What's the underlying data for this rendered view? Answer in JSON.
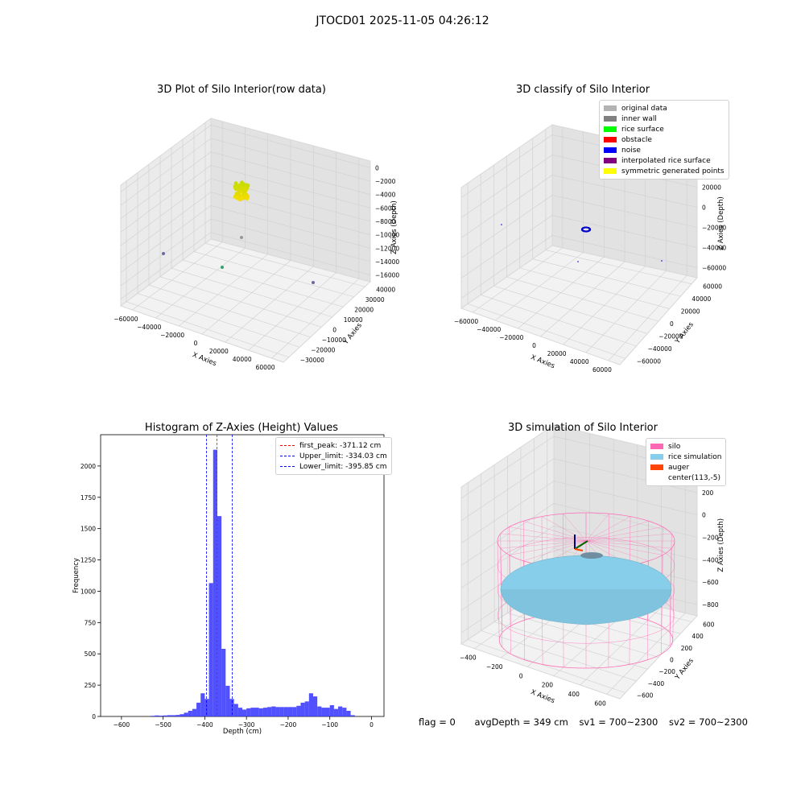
{
  "suptitle": "JTOCD01 2025-11-05 04:26:12",
  "chart_data": [
    {
      "type": "scatter",
      "title": "3D Plot of Silo Interior(row data)",
      "xlabel": "X Axies",
      "ylabel": "Y Axies",
      "zlabel": "Z Axies (Depth)",
      "x_ticks": [
        "−60000",
        "−40000",
        "−20000",
        "0",
        "20000",
        "40000",
        "60000"
      ],
      "y_ticks": [
        "−30000",
        "−20000",
        "−10000",
        "0",
        "10000",
        "20000",
        "30000",
        "40000"
      ],
      "z_ticks": [
        "0",
        "−2000",
        "−4000",
        "−6000",
        "−8000",
        "−10000",
        "−12000",
        "−14000",
        "−16000"
      ]
    },
    {
      "type": "scatter",
      "title": "3D classify of Silo Interior",
      "xlabel": "X Axies",
      "ylabel": "Y Axies",
      "zlabel": "Z Axies (Depth)",
      "x_ticks": [
        "−60000",
        "−40000",
        "−20000",
        "0",
        "20000",
        "40000",
        "60000"
      ],
      "y_ticks": [
        "−60000",
        "−40000",
        "−20000",
        "0",
        "20000",
        "40000",
        "60000"
      ],
      "z_ticks": [
        "40000",
        "20000",
        "0",
        "−20000",
        "−40000",
        "−60000"
      ],
      "legend": [
        {
          "label": "original data",
          "color": "#b3b3b3"
        },
        {
          "label": "inner wall",
          "color": "#808080"
        },
        {
          "label": "rice surface",
          "color": "#00ff00"
        },
        {
          "label": "obstacle",
          "color": "#ff0000"
        },
        {
          "label": "noise",
          "color": "#0000ff"
        },
        {
          "label": "interpolated rice surface",
          "color": "#800080"
        },
        {
          "label": "symmetric generated points",
          "color": "#ffff00"
        }
      ]
    },
    {
      "type": "bar",
      "title": "Histogram of Z-Axies (Height) Values",
      "xlabel": "Depth (cm)",
      "ylabel": "Frequency",
      "xlim": [
        -650,
        30
      ],
      "ylim": [
        0,
        2250
      ],
      "x_ticks": [
        -600,
        -500,
        -400,
        -300,
        -200,
        -100,
        0
      ],
      "x_tick_labels": [
        "−600",
        "−500",
        "−400",
        "−300",
        "−200",
        "−100",
        "0"
      ],
      "y_ticks": [
        0,
        250,
        500,
        750,
        1000,
        1250,
        1500,
        1750,
        2000
      ],
      "y_tick_labels": [
        "0",
        "250",
        "500",
        "750",
        "1000",
        "1250",
        "1500",
        "1750",
        "2000"
      ],
      "bin_width": 10,
      "bins": [
        {
          "x0": -530,
          "v": 5
        },
        {
          "x0": -520,
          "v": 8
        },
        {
          "x0": -510,
          "v": 6
        },
        {
          "x0": -500,
          "v": 8
        },
        {
          "x0": -490,
          "v": 10
        },
        {
          "x0": -480,
          "v": 10
        },
        {
          "x0": -470,
          "v": 12
        },
        {
          "x0": -460,
          "v": 18
        },
        {
          "x0": -450,
          "v": 30
        },
        {
          "x0": -440,
          "v": 45
        },
        {
          "x0": -430,
          "v": 60
        },
        {
          "x0": -420,
          "v": 110
        },
        {
          "x0": -410,
          "v": 185
        },
        {
          "x0": -400,
          "v": 140
        },
        {
          "x0": -390,
          "v": 1065
        },
        {
          "x0": -380,
          "v": 2130
        },
        {
          "x0": -370,
          "v": 1600
        },
        {
          "x0": -360,
          "v": 540
        },
        {
          "x0": -350,
          "v": 245
        },
        {
          "x0": -340,
          "v": 140
        },
        {
          "x0": -330,
          "v": 100
        },
        {
          "x0": -320,
          "v": 70
        },
        {
          "x0": -310,
          "v": 55
        },
        {
          "x0": -300,
          "v": 65
        },
        {
          "x0": -290,
          "v": 70
        },
        {
          "x0": -280,
          "v": 70
        },
        {
          "x0": -270,
          "v": 65
        },
        {
          "x0": -260,
          "v": 70
        },
        {
          "x0": -250,
          "v": 75
        },
        {
          "x0": -240,
          "v": 80
        },
        {
          "x0": -230,
          "v": 75
        },
        {
          "x0": -220,
          "v": 75
        },
        {
          "x0": -210,
          "v": 75
        },
        {
          "x0": -200,
          "v": 75
        },
        {
          "x0": -190,
          "v": 75
        },
        {
          "x0": -180,
          "v": 85
        },
        {
          "x0": -170,
          "v": 110
        },
        {
          "x0": -160,
          "v": 120
        },
        {
          "x0": -150,
          "v": 185
        },
        {
          "x0": -140,
          "v": 160
        },
        {
          "x0": -130,
          "v": 80
        },
        {
          "x0": -120,
          "v": 70
        },
        {
          "x0": -110,
          "v": 70
        },
        {
          "x0": -100,
          "v": 90
        },
        {
          "x0": -90,
          "v": 60
        },
        {
          "x0": -80,
          "v": 80
        },
        {
          "x0": -70,
          "v": 70
        },
        {
          "x0": -60,
          "v": 45
        },
        {
          "x0": -50,
          "v": 10
        }
      ],
      "vlines": [
        {
          "label": "first_peak: -371.12 cm",
          "x": -371.12,
          "color": "#ff0000"
        },
        {
          "label": "Upper_limit: -334.03 cm",
          "x": -334.03,
          "color": "#0000ff"
        },
        {
          "label": "Lower_limit: -395.85 cm",
          "x": -395.85,
          "color": "#0000ff"
        }
      ]
    },
    {
      "type": "scatter",
      "title": "3D simulation of Silo Interior",
      "xlabel": "X Axies",
      "ylabel": "Y Axies",
      "zlabel": "Z Axies (Depth)",
      "x_ticks": [
        "−400",
        "−200",
        "0",
        "200",
        "400",
        "600"
      ],
      "y_ticks": [
        "−600",
        "−400",
        "−200",
        "0",
        "200",
        "400",
        "600"
      ],
      "z_ticks": [
        "400",
        "200",
        "0",
        "−200",
        "−400",
        "−600",
        "−800"
      ],
      "legend": [
        {
          "label": "silo",
          "color": "#ff69b4"
        },
        {
          "label": "rice simulation",
          "color": "#87ceeb"
        },
        {
          "label": "auger",
          "color": "#ff4500"
        },
        {
          "label": "center(113,-5)",
          "color": "#ffffff"
        }
      ]
    }
  ],
  "footer": {
    "flag": "flag = 0",
    "avg": "avgDepth = 349 cm",
    "sv1": "sv1 = 700~2300",
    "sv2": "sv2 = 700~2300"
  }
}
